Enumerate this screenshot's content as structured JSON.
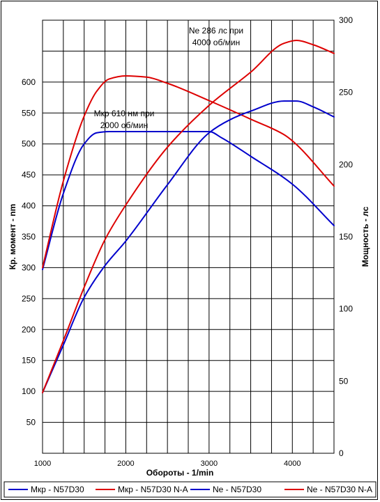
{
  "chart_data": {
    "type": "line",
    "xlabel": "Обороты - 1/min",
    "ylabel_left": "Кр. момент - nm",
    "ylabel_right": "Мощность - лс",
    "xlim": [
      1000,
      4500
    ],
    "ylim_left": [
      0,
      700
    ],
    "ylim_right": [
      0,
      300
    ],
    "x_ticks": [
      "1000",
      "2000",
      "3000",
      "4000"
    ],
    "y_left_ticks": [
      "50",
      "100",
      "150",
      "200",
      "250",
      "300",
      "350",
      "400",
      "450",
      "500",
      "550",
      "600"
    ],
    "y_right_ticks": [
      "0",
      "50",
      "100",
      "150",
      "200",
      "250",
      "300"
    ],
    "grid": true,
    "legend_position": "bottom",
    "annotations": [
      {
        "lines": [
          "Ne 286 лс при",
          "4000 об/мин"
        ]
      },
      {
        "lines": [
          "Мкр 610 нм при",
          "2000 об/мин"
        ]
      }
    ],
    "series": [
      {
        "name": "Мкр - N57D30",
        "axis": "left",
        "color": "#0000cc",
        "x": [
          1000,
          1250,
          1500,
          1650,
          1800,
          2000,
          2500,
          3000,
          3150,
          3500,
          4000,
          4500
        ],
        "y": [
          297,
          420,
          500,
          518,
          520,
          520,
          520,
          520,
          510,
          480,
          435,
          368
        ]
      },
      {
        "name": "Мкр - N57D30 N-A",
        "axis": "left",
        "color": "#dd0000",
        "x": [
          1000,
          1250,
          1500,
          1650,
          1800,
          2000,
          2250,
          2500,
          3000,
          3500,
          3900,
          4000,
          4500
        ],
        "y": [
          300,
          440,
          545,
          585,
          605,
          610,
          608,
          598,
          570,
          540,
          515,
          505,
          432
        ]
      },
      {
        "name": "Ne - N57D30",
        "axis": "right",
        "color": "#0000cc",
        "x": [
          1000,
          1250,
          1500,
          1750,
          2000,
          2500,
          3000,
          3250,
          3500,
          3900,
          4050,
          4250,
          4500
        ],
        "y": [
          42,
          75,
          108,
          130,
          147,
          186,
          222,
          231,
          237,
          244,
          244,
          240,
          233
        ]
      },
      {
        "name": "Ne - N57D30 N-A",
        "axis": "right",
        "color": "#dd0000",
        "x": [
          1000,
          1250,
          1500,
          1750,
          2000,
          2500,
          3000,
          3500,
          3900,
          4050,
          4250,
          4500
        ],
        "y": [
          42,
          78,
          115,
          148,
          172,
          212,
          241,
          264,
          284,
          286,
          283,
          277
        ]
      }
    ]
  }
}
